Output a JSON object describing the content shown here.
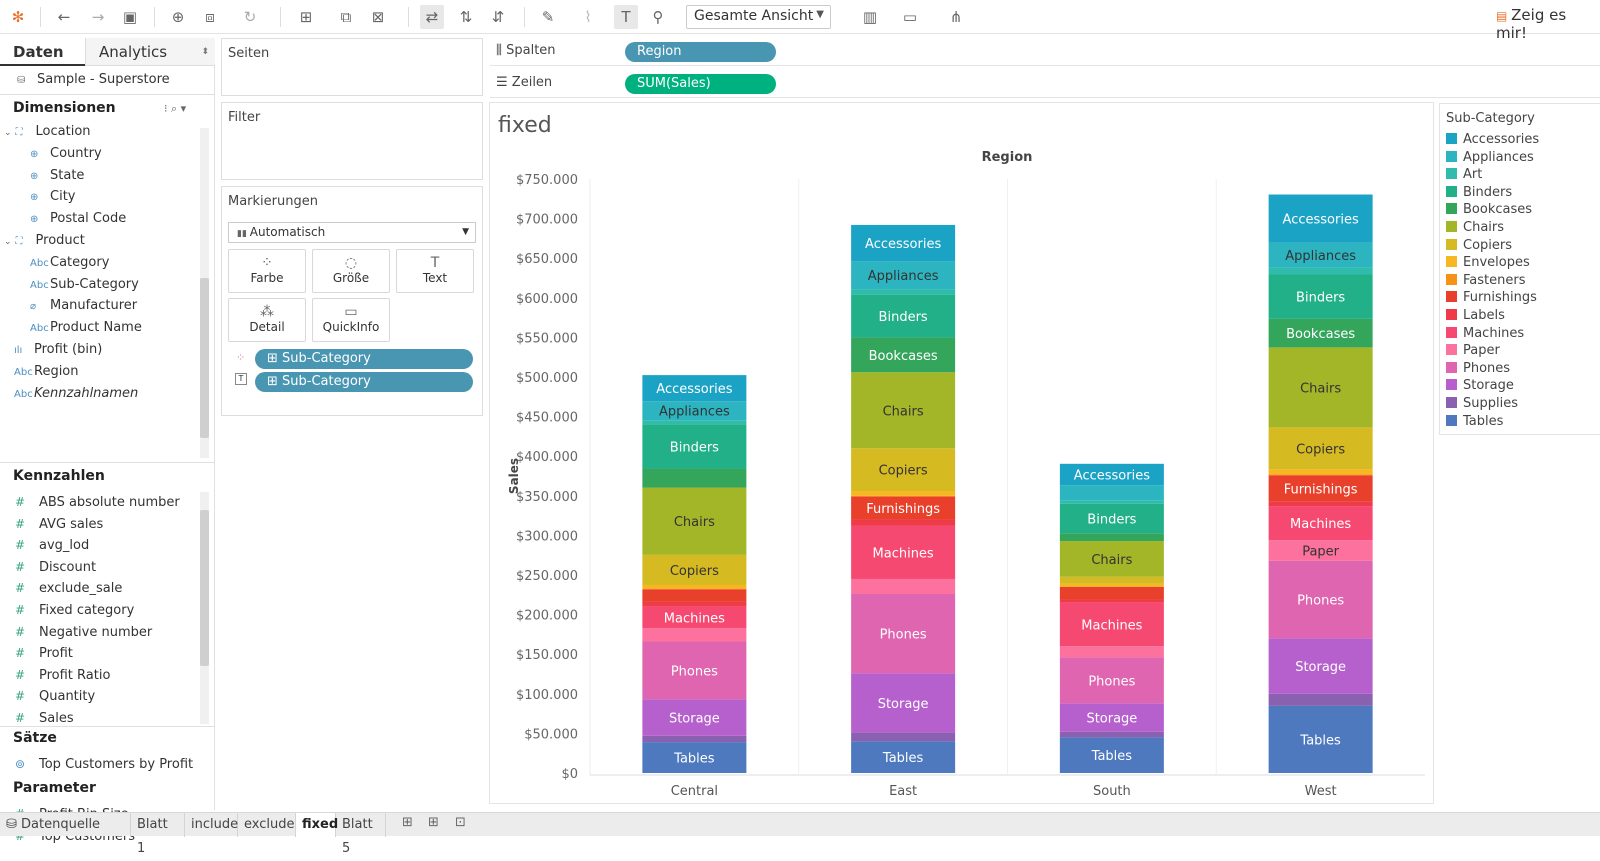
{
  "toolbar": {
    "view_select": "Gesamte Ansicht",
    "show_me": "Zeig es mir!",
    "icons": [
      "tableau-logo-icon",
      "undo-icon",
      "redo-icon",
      "save-icon",
      "new-datasource-icon",
      "pause-icon",
      "refresh-icon",
      "new-sheet-icon",
      "duplicate-sheet-icon",
      "clear-sheet-icon",
      "swap-icon",
      "sort-asc-icon",
      "sort-desc-icon",
      "highlight-icon",
      "group-icon",
      "labels-icon",
      "pin-icon",
      "fit-icon",
      "presentation-icon",
      "share-icon"
    ]
  },
  "left": {
    "tab_data": "Daten",
    "tab_analytics": "Analytics",
    "datasource": "Sample - Superstore",
    "dimensions_title": "Dimensionen",
    "dimensions": [
      {
        "label": "Location",
        "kind": "hierarchy",
        "indent": 0
      },
      {
        "label": "Country",
        "kind": "geo",
        "indent": 1
      },
      {
        "label": "State",
        "kind": "geo",
        "indent": 1
      },
      {
        "label": "City",
        "kind": "geo",
        "indent": 1
      },
      {
        "label": "Postal Code",
        "kind": "geo",
        "indent": 1
      },
      {
        "label": "Product",
        "kind": "hierarchy",
        "indent": 0
      },
      {
        "label": "Category",
        "kind": "abc",
        "indent": 1
      },
      {
        "label": "Sub-Category",
        "kind": "abc",
        "indent": 1
      },
      {
        "label": "Manufacturer",
        "kind": "clip",
        "indent": 1
      },
      {
        "label": "Product Name",
        "kind": "abc",
        "indent": 1
      },
      {
        "label": "Profit (bin)",
        "kind": "bin",
        "indent": 0
      },
      {
        "label": "Region",
        "kind": "abc",
        "indent": 0
      },
      {
        "label": "Kennzahlnamen",
        "kind": "abc",
        "indent": 0,
        "italic": true
      }
    ],
    "measures_title": "Kennzahlen",
    "measures": [
      "ABS absolute number",
      "AVG sales",
      "avg_lod",
      "Discount",
      "exclude_sale",
      "Fixed category",
      "Negative number",
      "Profit",
      "Profit Ratio",
      "Quantity",
      "Sales"
    ],
    "sets_title": "Sätze",
    "sets": [
      "Top Customers by Profit"
    ],
    "params_title": "Parameter",
    "params": [
      "Profit Bin Size",
      "Top Customers"
    ]
  },
  "cards": {
    "pages": "Seiten",
    "filter": "Filter",
    "marks": "Markierungen",
    "mark_type": "Automatisch",
    "buttons": [
      {
        "label": "Farbe",
        "icon": "color-icon"
      },
      {
        "label": "Größe",
        "icon": "size-icon"
      },
      {
        "label": "Text",
        "icon": "text-icon"
      },
      {
        "label": "Detail",
        "icon": "detail-icon"
      },
      {
        "label": "QuickInfo",
        "icon": "tooltip-icon"
      }
    ],
    "mark_pills": [
      "Sub-Category",
      "Sub-Category"
    ]
  },
  "shelves": {
    "columns_label": "Spalten",
    "columns_pill": "Region",
    "rows_label": "Zeilen",
    "rows_pill": "SUM(Sales)"
  },
  "sheet_title": "fixed",
  "colors": {
    "pill_dim": "#4996b2",
    "pill_measure": "#00b180",
    "Accessories": "#1ba3c6",
    "Appliances": "#2cb5c0",
    "Art": "#30bcad",
    "Binders": "#21b087",
    "Bookcases": "#33a65c",
    "Chairs": "#a2b627",
    "Copiers": "#d5bb21",
    "Envelopes": "#f8b620",
    "Fasteners": "#f89217",
    "Furnishings": "#e8402a",
    "Labels": "#ef3a49",
    "Machines": "#f64971",
    "Paper": "#fc719e",
    "Phones": "#df65b0",
    "Storage": "#b660cd",
    "Supplies": "#8a60b0",
    "Tables": "#4e79be"
  },
  "legend": {
    "title": "Sub-Category",
    "items": [
      "Accessories",
      "Appliances",
      "Art",
      "Binders",
      "Bookcases",
      "Chairs",
      "Copiers",
      "Envelopes",
      "Fasteners",
      "Furnishings",
      "Labels",
      "Machines",
      "Paper",
      "Phones",
      "Storage",
      "Supplies",
      "Tables"
    ]
  },
  "chart_data": {
    "type": "bar",
    "stacked": true,
    "title": "Region",
    "xlabel": "",
    "ylabel": "Sales",
    "ylim": [
      0,
      750000
    ],
    "yticks": [
      "$0",
      "$50.000",
      "$100.000",
      "$150.000",
      "$200.000",
      "$250.000",
      "$300.000",
      "$350.000",
      "$400.000",
      "$450.000",
      "$500.000",
      "$550.000",
      "$600.000",
      "$650.000",
      "$700.000",
      "$750.000"
    ],
    "categories": [
      "Central",
      "East",
      "South",
      "West"
    ],
    "series": [
      {
        "name": "Tables",
        "values": [
          39000,
          40000,
          45000,
          85000
        ],
        "labels": [
          true,
          true,
          true,
          true
        ]
      },
      {
        "name": "Supplies",
        "values": [
          8000,
          11000,
          7000,
          15000
        ],
        "labels": [
          false,
          false,
          false,
          false
        ]
      },
      {
        "name": "Storage",
        "values": [
          46000,
          75000,
          36000,
          70000
        ],
        "labels": [
          true,
          true,
          true,
          true
        ]
      },
      {
        "name": "Phones",
        "values": [
          73000,
          100000,
          58000,
          98000
        ],
        "labels": [
          true,
          true,
          true,
          true
        ]
      },
      {
        "name": "Paper",
        "values": [
          17000,
          19000,
          14000,
          26000
        ],
        "labels": [
          false,
          false,
          false,
          true
        ]
      },
      {
        "name": "Machines",
        "values": [
          27000,
          67000,
          55000,
          43000
        ],
        "labels": [
          true,
          true,
          true,
          true
        ]
      },
      {
        "name": "Labels",
        "values": [
          6000,
          8000,
          4000,
          6000
        ],
        "labels": [
          false,
          false,
          false,
          false
        ]
      },
      {
        "name": "Furnishings",
        "values": [
          16000,
          29000,
          16000,
          33000
        ],
        "labels": [
          false,
          true,
          false,
          true
        ]
      },
      {
        "name": "Fasteners",
        "values": [
          800,
          1000,
          600,
          1000
        ],
        "labels": [
          false,
          false,
          false,
          false
        ]
      },
      {
        "name": "Envelopes",
        "values": [
          4600,
          6000,
          3200,
          6400
        ],
        "labels": [
          false,
          false,
          false,
          false
        ]
      },
      {
        "name": "Copiers",
        "values": [
          38000,
          54000,
          9000,
          53000
        ],
        "labels": [
          true,
          true,
          false,
          true
        ]
      },
      {
        "name": "Chairs",
        "values": [
          85000,
          96000,
          45000,
          101000
        ],
        "labels": [
          true,
          true,
          true,
          true
        ]
      },
      {
        "name": "Bookcases",
        "values": [
          24000,
          44000,
          10000,
          36000
        ],
        "labels": [
          false,
          true,
          false,
          true
        ]
      },
      {
        "name": "Binders",
        "values": [
          56000,
          54000,
          37000,
          56000
        ],
        "labels": [
          true,
          true,
          true,
          true
        ]
      },
      {
        "name": "Art",
        "values": [
          5000,
          7000,
          4600,
          9000
        ],
        "labels": [
          false,
          false,
          false,
          false
        ]
      },
      {
        "name": "Appliances",
        "values": [
          24000,
          35000,
          19000,
          31000
        ],
        "labels": [
          true,
          true,
          false,
          true
        ]
      },
      {
        "name": "Accessories",
        "values": [
          33000,
          46000,
          27000,
          61000
        ],
        "labels": [
          true,
          true,
          true,
          true
        ]
      }
    ]
  },
  "bottom_tabs": {
    "datasource": "Datenquelle",
    "sheets": [
      "Blatt 1",
      "include",
      "exclude",
      "fixed",
      "Blatt 5"
    ],
    "active": "fixed"
  }
}
